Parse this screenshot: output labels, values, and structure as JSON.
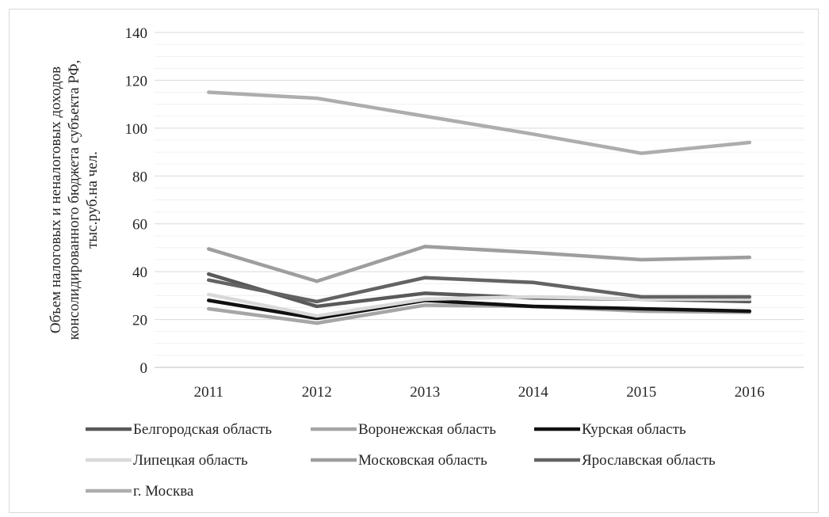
{
  "chart_data": {
    "type": "line",
    "title": "",
    "xlabel": "",
    "ylabel_lines": [
      "Объем налоговых и неналоговых доходов",
      "консолидированного бюджета субъекта РФ,",
      "тыс.руб.на чел."
    ],
    "x": [
      "2011",
      "2012",
      "2013",
      "2014",
      "2015",
      "2016"
    ],
    "ylim": [
      0,
      140
    ],
    "yticks": [
      "0",
      "20",
      "40",
      "60",
      "80",
      "100",
      "120",
      "140"
    ],
    "grid": true,
    "legend_position": "bottom",
    "series": [
      {
        "name": "Белгородская область",
        "color": "#595959",
        "values": [
          39,
          25.5,
          31,
          29,
          28.5,
          27.5
        ]
      },
      {
        "name": "Воронежская область",
        "color": "#a6a6a6",
        "values": [
          24.5,
          18.5,
          26,
          25.5,
          23.5,
          23
        ]
      },
      {
        "name": "Курская область",
        "color": "#111111",
        "values": [
          28,
          20.5,
          28,
          25.5,
          24.5,
          23.5
        ]
      },
      {
        "name": "Липецкая область",
        "color": "#d9d9d9",
        "values": [
          30.5,
          21.5,
          28.5,
          29.5,
          28.5,
          28.5
        ]
      },
      {
        "name": "Московская область",
        "color": "#9e9e9e",
        "values": [
          49.5,
          36,
          50.5,
          48,
          45,
          46
        ]
      },
      {
        "name": "Ярославская область",
        "color": "#636363",
        "values": [
          36.5,
          27.5,
          37.5,
          35.5,
          29.5,
          29.5
        ]
      },
      {
        "name": "г. Москва",
        "color": "#adadad",
        "values": [
          115,
          112.5,
          105,
          97.5,
          89.5,
          94
        ]
      }
    ]
  }
}
